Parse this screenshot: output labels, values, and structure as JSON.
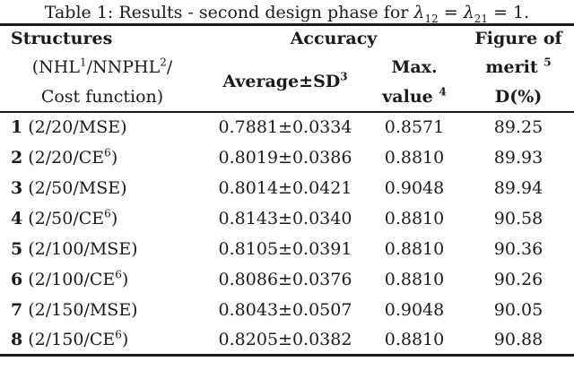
{
  "caption": {
    "prefix": "Table 1: Results - second design phase for ",
    "lambda1": "λ",
    "sub1": "12",
    "eq1": " = ",
    "lambda2": "λ",
    "sub2": "21",
    "suffix": " = 1."
  },
  "header": {
    "structures": {
      "line1": "Structures",
      "line2": {
        "p0": "(NHL",
        "s0": "1",
        "p1": "/NNPHL",
        "s1": "2",
        "p2": "/"
      },
      "line3": "Cost function)"
    },
    "accuracy_title": "Accuracy",
    "average_sd": {
      "main": "Average±SD",
      "sup": "3"
    },
    "max_value": {
      "line1": "Max.",
      "line2": "value",
      "sup": "4"
    },
    "figure_of_merit": {
      "line1": "Figure of",
      "line2": "merit",
      "sup": "5",
      "line3": "D(%)"
    }
  },
  "rows": [
    {
      "num": "1",
      "pre": " (2/20/MSE)",
      "sup": "",
      "post": "",
      "avg": "0.7881±0.0334",
      "max": "0.8571",
      "d": "89.25"
    },
    {
      "num": "2",
      "pre": " (2/20/CE",
      "sup": "6",
      "post": ")",
      "avg": "0.8019±0.0386",
      "max": "0.8810",
      "d": "89.93"
    },
    {
      "num": "3",
      "pre": " (2/50/MSE)",
      "sup": "",
      "post": "",
      "avg": "0.8014±0.0421",
      "max": "0.9048",
      "d": "89.94"
    },
    {
      "num": "4",
      "pre": " (2/50/CE",
      "sup": "6",
      "post": ")",
      "avg": "0.8143±0.0340",
      "max": "0.8810",
      "d": "90.58"
    },
    {
      "num": "5",
      "pre": " (2/100/MSE)",
      "sup": "",
      "post": "",
      "avg": "0.8105±0.0391",
      "max": "0.8810",
      "d": "90.36"
    },
    {
      "num": "6",
      "pre": " (2/100/CE",
      "sup": "6",
      "post": ")",
      "avg": "0.8086±0.0376",
      "max": "0.8810",
      "d": "90.26"
    },
    {
      "num": "7",
      "pre": " (2/150/MSE)",
      "sup": "",
      "post": "",
      "avg": "0.8043±0.0507",
      "max": "0.9048",
      "d": "90.05"
    },
    {
      "num": "8",
      "pre": " (2/150/CE",
      "sup": "6",
      "post": ")",
      "avg": "0.8205±0.0382",
      "max": "0.8810",
      "d": "90.88"
    }
  ],
  "colors": {
    "background": "#ffffff",
    "text": "#1b1b1b",
    "rule": "#1b1b1b"
  }
}
